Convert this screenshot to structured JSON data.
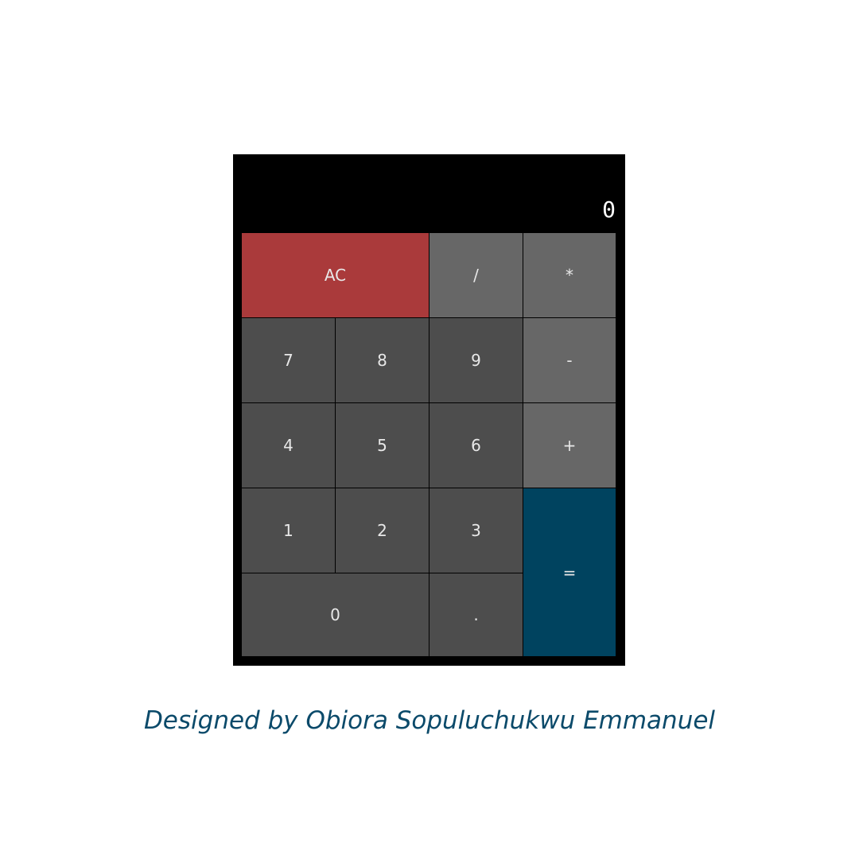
{
  "display": {
    "value": "0"
  },
  "keys": {
    "clear": "AC",
    "divide": "/",
    "multiply": "*",
    "seven": "7",
    "eight": "8",
    "nine": "9",
    "subtract": "-",
    "four": "4",
    "five": "5",
    "six": "6",
    "add": "+",
    "one": "1",
    "two": "2",
    "three": "3",
    "equals": "=",
    "zero": "0",
    "decimal": "."
  },
  "footer": {
    "credit": "Designed by Obiora Sopuluchukwu Emmanuel"
  },
  "colors": {
    "clear_key": "#aa3a3b",
    "operator_key": "#676767",
    "number_key": "#4d4d4d",
    "equals_key": "#00435f",
    "credit_text": "#0b4a6a"
  }
}
